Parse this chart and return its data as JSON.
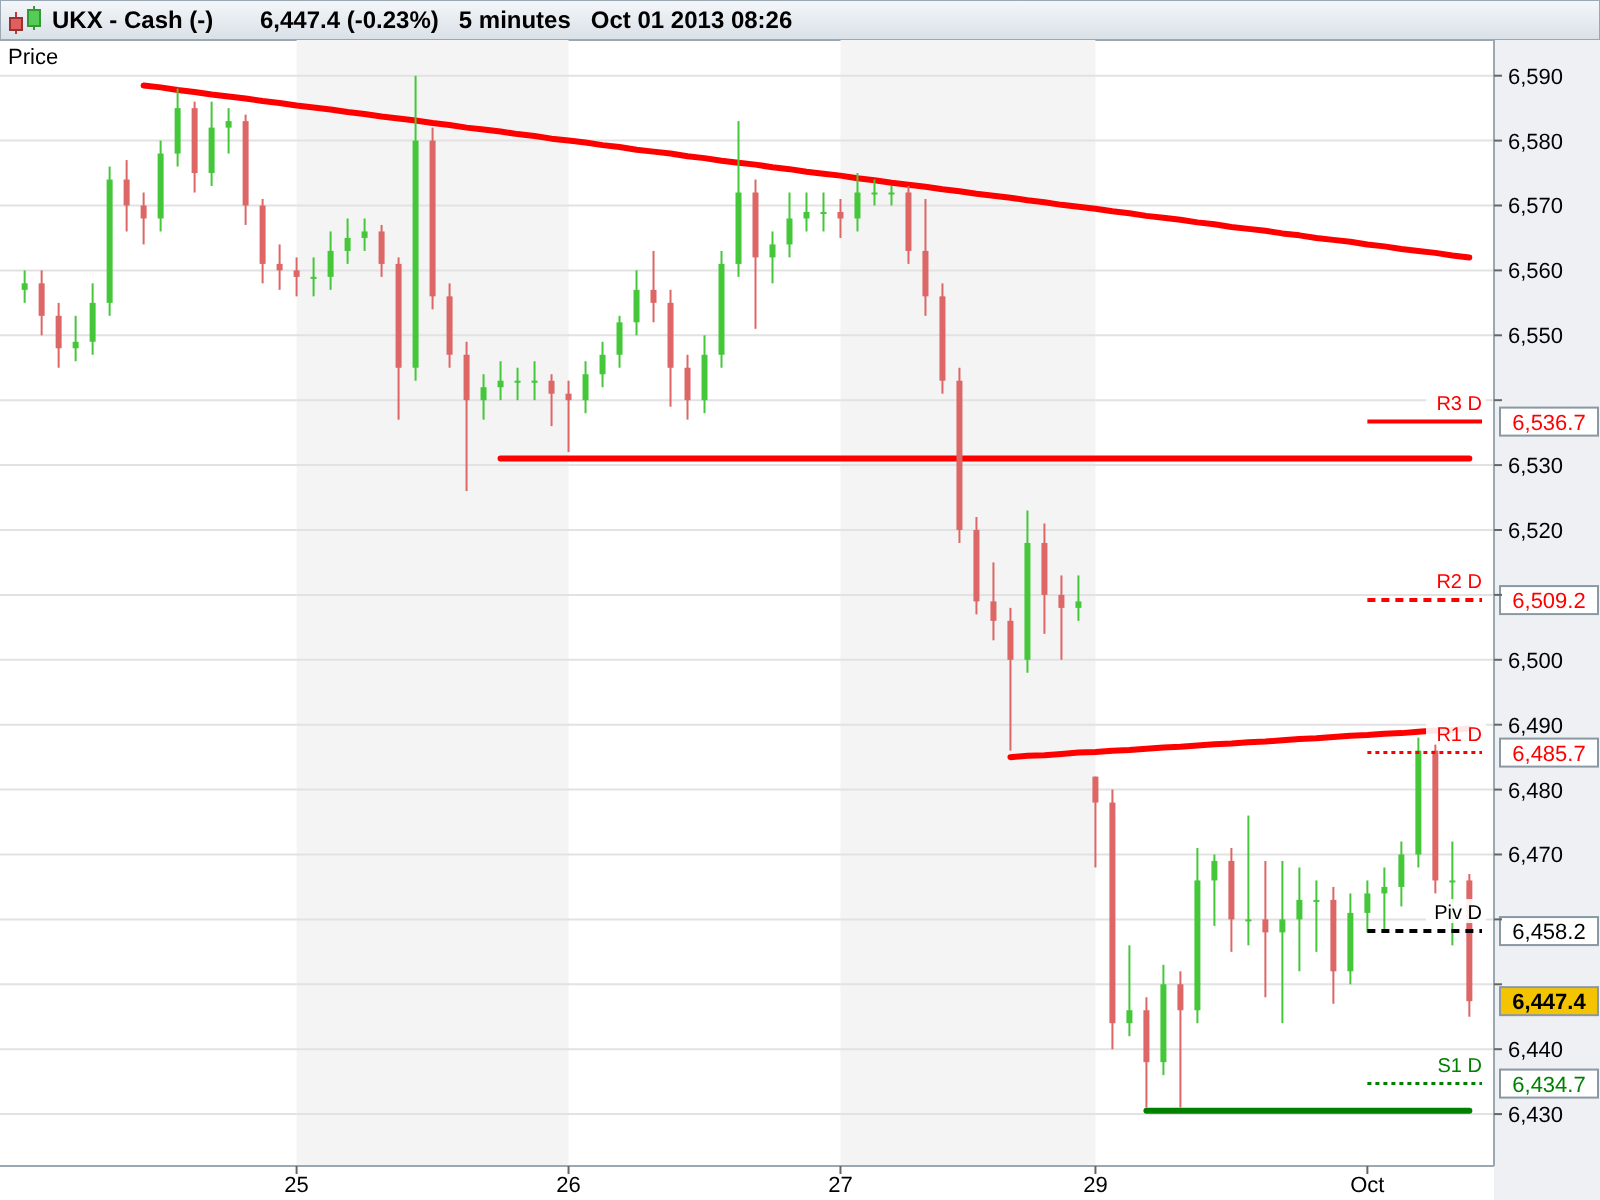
{
  "chart_data": {
    "type": "candlestick",
    "title": "UKX - Cash (-)",
    "subtitle": "6,447.4 (-0.23%)   5 minutes   Oct 01 2013 08:26",
    "ylabel": "Price",
    "categories": [
      null,
      null,
      null,
      null,
      null,
      null,
      null,
      null,
      null,
      null,
      null,
      null,
      null,
      null,
      null,
      null,
      "25",
      null,
      null,
      null,
      null,
      null,
      null,
      null,
      null,
      null,
      null,
      null,
      null,
      null,
      null,
      null,
      "26",
      null,
      null,
      null,
      null,
      null,
      null,
      null,
      null,
      null,
      null,
      null,
      null,
      null,
      null,
      null,
      "27",
      null,
      null,
      null,
      null,
      null,
      null,
      null,
      null,
      null,
      null,
      null,
      null,
      null,
      null,
      "29",
      null,
      null,
      null,
      null,
      null,
      null,
      null,
      null,
      null,
      null,
      null,
      null,
      null,
      null,
      null,
      "Oct",
      null,
      null,
      null,
      null,
      null,
      null
    ],
    "ohlc": [
      [
        6557,
        6560,
        6555,
        6558
      ],
      [
        6558,
        6560,
        6550,
        6553
      ],
      [
        6553,
        6555,
        6545,
        6548
      ],
      [
        6548,
        6553,
        6546,
        6549
      ],
      [
        6549,
        6558,
        6547,
        6555
      ],
      [
        6555,
        6576,
        6553,
        6574
      ],
      [
        6574,
        6577,
        6566,
        6570
      ],
      [
        6570,
        6572,
        6564,
        6568
      ],
      [
        6568,
        6580,
        6566,
        6578
      ],
      [
        6578,
        6588,
        6576,
        6585
      ],
      [
        6585,
        6586,
        6572,
        6575
      ],
      [
        6575,
        6586,
        6573,
        6582
      ],
      [
        6582,
        6585,
        6578,
        6583
      ],
      [
        6583,
        6584,
        6567,
        6570
      ],
      [
        6570,
        6571,
        6558,
        6561
      ],
      [
        6561,
        6564,
        6557,
        6560
      ],
      [
        6560,
        6562,
        6556,
        6559
      ],
      [
        6559,
        6562,
        6556,
        6559
      ],
      [
        6559,
        6566,
        6557,
        6563
      ],
      [
        6563,
        6568,
        6561,
        6565
      ],
      [
        6565,
        6568,
        6563,
        6566
      ],
      [
        6566,
        6567,
        6559,
        6561
      ],
      [
        6561,
        6562,
        6537,
        6545
      ],
      [
        6545,
        6590,
        6543,
        6580
      ],
      [
        6580,
        6582,
        6554,
        6556
      ],
      [
        6556,
        6558,
        6545,
        6547
      ],
      [
        6547,
        6549,
        6526,
        6540
      ],
      [
        6540,
        6544,
        6537,
        6542
      ],
      [
        6542,
        6546,
        6540,
        6543
      ],
      [
        6543,
        6545,
        6540,
        6543
      ],
      [
        6543,
        6546,
        6540,
        6543
      ],
      [
        6543,
        6544,
        6536,
        6541
      ],
      [
        6541,
        6543,
        6532,
        6540
      ],
      [
        6540,
        6546,
        6538,
        6544
      ],
      [
        6544,
        6549,
        6542,
        6547
      ],
      [
        6547,
        6553,
        6545,
        6552
      ],
      [
        6552,
        6560,
        6550,
        6557
      ],
      [
        6557,
        6563,
        6552,
        6555
      ],
      [
        6555,
        6557,
        6539,
        6545
      ],
      [
        6545,
        6547,
        6537,
        6540
      ],
      [
        6540,
        6550,
        6538,
        6547
      ],
      [
        6547,
        6563,
        6545,
        6561
      ],
      [
        6561,
        6583,
        6559,
        6572
      ],
      [
        6572,
        6574,
        6551,
        6562
      ],
      [
        6562,
        6566,
        6558,
        6564
      ],
      [
        6564,
        6572,
        6562,
        6568
      ],
      [
        6568,
        6572,
        6566,
        6569
      ],
      [
        6569,
        6572,
        6566,
        6569
      ],
      [
        6569,
        6571,
        6565,
        6568
      ],
      [
        6568,
        6575,
        6566,
        6572
      ],
      [
        6572,
        6574,
        6570,
        6572
      ],
      [
        6572,
        6573,
        6570,
        6572
      ],
      [
        6572,
        6573,
        6561,
        6563
      ],
      [
        6563,
        6571,
        6553,
        6556
      ],
      [
        6556,
        6558,
        6541,
        6543
      ],
      [
        6543,
        6545,
        6518,
        6520
      ],
      [
        6520,
        6522,
        6507,
        6509
      ],
      [
        6509,
        6515,
        6503,
        6506
      ],
      [
        6506,
        6508,
        6486,
        6500
      ],
      [
        6500,
        6523,
        6498,
        6518
      ],
      [
        6518,
        6521,
        6504,
        6510
      ],
      [
        6510,
        6513,
        6500,
        6508
      ],
      [
        6508,
        6513,
        6506,
        6509
      ],
      [
        6482,
        6482,
        6468,
        6478
      ],
      [
        6478,
        6480,
        6440,
        6444
      ],
      [
        6444,
        6456,
        6442,
        6446
      ],
      [
        6446,
        6448,
        6431,
        6438
      ],
      [
        6438,
        6453,
        6436,
        6450
      ],
      [
        6450,
        6452,
        6431,
        6446
      ],
      [
        6446,
        6471,
        6444,
        6466
      ],
      [
        6466,
        6470,
        6459,
        6469
      ],
      [
        6469,
        6471,
        6455,
        6460
      ],
      [
        6460,
        6476,
        6456,
        6460
      ],
      [
        6460,
        6469,
        6448,
        6458
      ],
      [
        6458,
        6469,
        6444,
        6460
      ],
      [
        6460,
        6468,
        6452,
        6463
      ],
      [
        6463,
        6466,
        6455,
        6463
      ],
      [
        6463,
        6465,
        6447,
        6452
      ],
      [
        6452,
        6464,
        6450,
        6461
      ],
      [
        6461,
        6466,
        6458,
        6464
      ],
      [
        6464,
        6468,
        6458,
        6465
      ],
      [
        6465,
        6472,
        6462,
        6470
      ],
      [
        6470,
        6488,
        6468,
        6486
      ],
      [
        6486,
        6487,
        6464,
        6466
      ],
      [
        6466,
        6472,
        6456,
        6466
      ],
      [
        6466,
        6467,
        6445,
        6447.4
      ]
    ],
    "series": [
      {
        "type": "line",
        "color": "#ff0000",
        "values": [
          null,
          null,
          null,
          null,
          null,
          null,
          null,
          6588.5,
          6588.2,
          6587.8,
          6587.5,
          6587.1,
          6586.8,
          6586.5,
          6586.1,
          6585.8,
          6585.4,
          6585.1,
          6584.8,
          6584.4,
          6584.1,
          6583.7,
          6583.4,
          6583.1,
          6582.7,
          6582.4,
          6582.0,
          6581.7,
          6581.4,
          6581.0,
          6580.7,
          6580.3,
          6580.0,
          6579.7,
          6579.3,
          6579.0,
          6578.6,
          6578.3,
          6578.0,
          6577.6,
          6577.3,
          6576.9,
          6576.6,
          6576.3,
          6575.9,
          6575.6,
          6575.2,
          6574.9,
          6574.6,
          6574.2,
          6573.9,
          6573.5,
          6573.2,
          6572.9,
          6572.5,
          6572.2,
          6571.8,
          6571.5,
          6571.2,
          6570.8,
          6570.5,
          6570.1,
          6569.8,
          6569.5,
          6569.1,
          6568.8,
          6568.4,
          6568.1,
          6567.8,
          6567.4,
          6567.1,
          6566.7,
          6566.4,
          6566.1,
          6565.7,
          6565.4,
          6565.0,
          6564.7,
          6564.4,
          6564.0,
          6563.7,
          6563.3,
          6563.0,
          6562.7,
          6562.3,
          6562.0
        ]
      },
      {
        "type": "line",
        "color": "#ff0000",
        "values": [
          null,
          null,
          null,
          null,
          null,
          null,
          null,
          null,
          null,
          null,
          null,
          null,
          null,
          null,
          null,
          null,
          null,
          null,
          null,
          null,
          null,
          null,
          null,
          null,
          null,
          null,
          null,
          null,
          6531,
          6531,
          6531,
          6531,
          6531,
          6531,
          6531,
          6531,
          6531,
          6531,
          6531,
          6531,
          6531,
          6531,
          6531,
          6531,
          6531,
          6531,
          6531,
          6531,
          6531,
          6531,
          6531,
          6531,
          6531,
          6531,
          6531,
          6531,
          6531,
          6531,
          6531,
          6531,
          6531,
          6531,
          6531,
          6531,
          6531,
          6531,
          6531,
          6531,
          6531,
          6531,
          6531,
          6531,
          6531,
          6531,
          6531,
          6531,
          6531,
          6531,
          6531,
          6531,
          6531,
          6531,
          6531,
          6531,
          6531,
          6531
        ]
      },
      {
        "type": "line",
        "color": "#ff0000",
        "values": [
          null,
          null,
          null,
          null,
          null,
          null,
          null,
          null,
          null,
          null,
          null,
          null,
          null,
          null,
          null,
          null,
          null,
          null,
          null,
          null,
          null,
          null,
          null,
          null,
          null,
          null,
          null,
          null,
          null,
          null,
          null,
          null,
          null,
          null,
          null,
          null,
          null,
          null,
          null,
          null,
          null,
          null,
          null,
          null,
          null,
          null,
          null,
          null,
          null,
          null,
          null,
          null,
          null,
          null,
          null,
          null,
          null,
          null,
          6485.0,
          6485.2,
          6485.3,
          6485.5,
          6485.7,
          6485.8,
          6486.0,
          6486.1,
          6486.3,
          6486.5,
          6486.6,
          6486.8,
          6487.0,
          6487.1,
          6487.3,
          6487.4,
          6487.6,
          6487.8,
          6487.9,
          6488.1,
          6488.3,
          6488.4,
          6488.6,
          6488.7,
          6488.9,
          6489.1,
          6489.2,
          6489.4
        ]
      },
      {
        "type": "line",
        "color": "#008000",
        "values": [
          null,
          null,
          null,
          null,
          null,
          null,
          null,
          null,
          null,
          null,
          null,
          null,
          null,
          null,
          null,
          null,
          null,
          null,
          null,
          null,
          null,
          null,
          null,
          null,
          null,
          null,
          null,
          null,
          null,
          null,
          null,
          null,
          null,
          null,
          null,
          null,
          null,
          null,
          null,
          null,
          null,
          null,
          null,
          null,
          null,
          null,
          null,
          null,
          null,
          null,
          null,
          null,
          null,
          null,
          null,
          null,
          null,
          null,
          null,
          null,
          null,
          null,
          null,
          null,
          null,
          null,
          6430.5,
          6430.5,
          6430.5,
          6430.5,
          6430.5,
          6430.5,
          6430.5,
          6430.5,
          6430.5,
          6430.5,
          6430.5,
          6430.5,
          6430.5,
          6430.5,
          6430.5,
          6430.5,
          6430.5,
          6430.5,
          6430.5,
          6430.5
        ]
      }
    ],
    "ref_lines": [
      {
        "axis": "y",
        "value": 6536.7,
        "label": "R3 D",
        "color": "#ff0000",
        "line_style": "solid"
      },
      {
        "axis": "y",
        "value": 6509.2,
        "label": "R2 D",
        "color": "#ff0000",
        "line_style": "dashed"
      },
      {
        "axis": "y",
        "value": 6485.7,
        "label": "R1 D",
        "color": "#ff0000",
        "line_style": "dotted"
      },
      {
        "axis": "y",
        "value": 6458.2,
        "label": "Piv D",
        "color": "#000000",
        "line_style": "dashed"
      },
      {
        "axis": "y",
        "value": 6434.7,
        "label": "S1 D",
        "color": "#008000",
        "line_style": "dotted"
      }
    ],
    "bands": [
      {
        "axis": "x",
        "from": "25",
        "to": "26",
        "color": "#f4f4f4"
      },
      {
        "axis": "x",
        "from": "27",
        "to": "29",
        "color": "#f4f4f4"
      }
    ],
    "annotations": [
      "6,536.7",
      "6,509.2",
      "6,485.7",
      "6,458.2",
      "6,434.7",
      "6,447.4"
    ],
    "ylim": [
      6422,
      6595.5
    ],
    "yticks": [
      {
        "value": 6430,
        "label": "6,430"
      },
      {
        "value": 6440,
        "label": "6,440"
      },
      {
        "value": 6450,
        "label": null
      },
      {
        "value": 6460,
        "label": null
      },
      {
        "value": 6470,
        "label": "6,470"
      },
      {
        "value": 6480,
        "label": "6,480"
      },
      {
        "value": 6490,
        "label": "6,490"
      },
      {
        "value": 6500,
        "label": "6,500"
      },
      {
        "value": 6510,
        "label": null
      },
      {
        "value": 6520,
        "label": "6,520"
      },
      {
        "value": 6530,
        "label": "6,530"
      },
      {
        "value": 6540,
        "label": null
      },
      {
        "value": 6550,
        "label": "6,550"
      },
      {
        "value": 6560,
        "label": "6,560"
      },
      {
        "value": 6570,
        "label": "6,570"
      },
      {
        "value": 6580,
        "label": "6,580"
      },
      {
        "value": 6590,
        "label": "6,590"
      }
    ],
    "grid": "y"
  }
}
